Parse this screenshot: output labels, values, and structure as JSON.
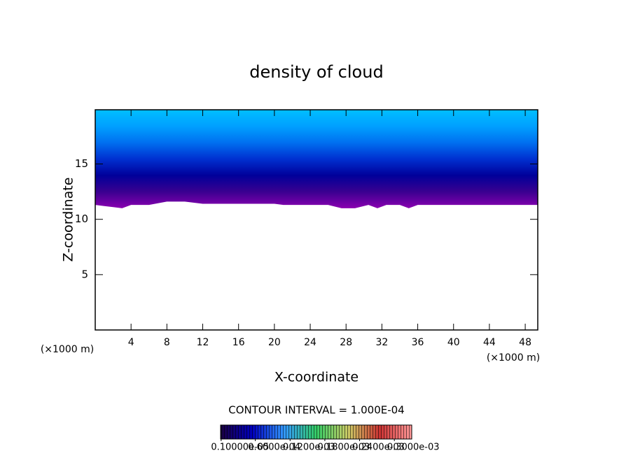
{
  "chart_data": {
    "type": "contour",
    "title": "density of cloud",
    "x_label": "X-coordinate",
    "y_label": "Z-coordinate",
    "x_unit": "(×1000 m)",
    "y_unit": "(×1000 m)",
    "xlim": [
      0,
      49.4
    ],
    "ylim": [
      0,
      19.9
    ],
    "xticks": [
      4,
      8,
      12,
      16,
      20,
      24,
      28,
      32,
      36,
      40,
      44,
      48
    ],
    "yticks": [
      5,
      10,
      15
    ],
    "x": [
      0,
      1,
      2,
      3,
      4,
      6,
      8,
      10,
      12,
      14,
      16,
      18,
      20,
      21,
      24,
      26,
      27.5,
      29,
      30.5,
      31.5,
      32.5,
      34,
      35,
      36,
      38,
      40,
      42,
      44,
      46,
      48,
      49.4
    ],
    "cloud_base": [
      11.3,
      11.2,
      11.1,
      11.0,
      11.3,
      11.3,
      11.6,
      11.6,
      11.4,
      11.4,
      11.4,
      11.4,
      11.4,
      11.3,
      11.3,
      11.3,
      11.0,
      11.0,
      11.3,
      11.0,
      11.3,
      11.3,
      11.0,
      11.3,
      11.3,
      11.3,
      11.3,
      11.3,
      11.3,
      11.3,
      11.3
    ],
    "cloud_colors": [
      "#00bfff",
      "#00a0ff",
      "#0070f0",
      "#0030d0",
      "#00009a",
      "#3a0090",
      "#8a00b0"
    ],
    "contour_interval": "CONTOUR INTERVAL = 1.000E-04",
    "colorbar": {
      "colors": [
        "#1a0040",
        "#0000c0",
        "#3399ff",
        "#33cc66",
        "#cccc66",
        "#cc3333",
        "#ff9999"
      ],
      "clim": [
        0,
        0.00033
      ],
      "ticks": [
        {
          "value": 1e-06,
          "label": "0.10000e-05"
        },
        {
          "value": 6e-05,
          "label": "0.6000e-04"
        },
        {
          "value": 0.00012,
          "label": "0.1200e-03"
        },
        {
          "value": 0.00018,
          "label": "0.1800e-03"
        },
        {
          "value": 0.00024,
          "label": "0.2400e-03"
        },
        {
          "value": 0.0003,
          "label": "0.3000e-03"
        }
      ]
    }
  }
}
